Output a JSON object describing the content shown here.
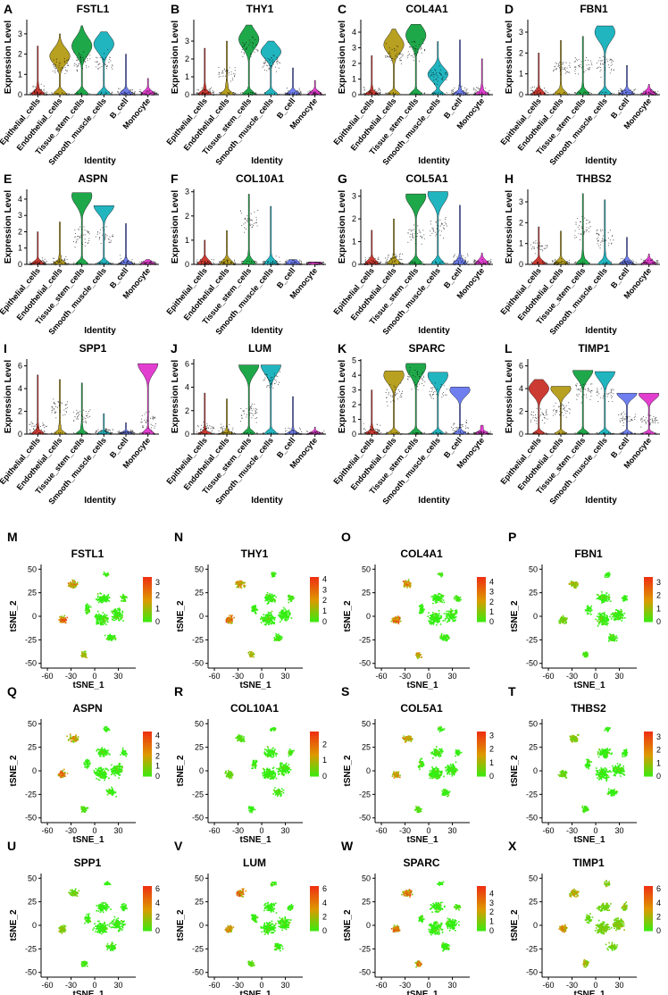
{
  "violin_common": {
    "ylabel": "Expression Level",
    "xlabel": "Identity",
    "categories": [
      "Epithelial_cells",
      "Endothelial_cells",
      "Tissue_stem_cells",
      "Smooth_muscle_cells",
      "B_cell",
      "Monocyte"
    ],
    "category_colors": [
      "#cc3b32",
      "#b8a020",
      "#1fa84a",
      "#21b5c0",
      "#6f7ff0",
      "#e23fd0"
    ]
  },
  "tsne_common": {
    "xlabel": "tSNE_1",
    "ylabel": "tSNE_2",
    "xticks": [
      -60,
      -30,
      0,
      30
    ],
    "yticks": [
      50,
      25,
      0,
      -25,
      -50
    ],
    "xlim": [
      -68,
      52
    ],
    "ylim": [
      -55,
      55
    ],
    "color_low": "#33ee11",
    "color_mid": "#dd9900",
    "color_high": "#ee3311"
  },
  "chart_data": [
    {
      "type": "violin",
      "panel": "A",
      "gene": "FSTL1",
      "yticks": [
        0,
        1,
        2,
        3
      ],
      "ylim": [
        0,
        3.7
      ],
      "peak": [
        0.2,
        1.9,
        2.4,
        2.5,
        0.1,
        0.1
      ],
      "typical": [
        0.1,
        1.4,
        1.7,
        1.6,
        0.1,
        0.1
      ],
      "max": [
        2.4,
        3.0,
        3.4,
        3.1,
        2.0,
        0.8
      ]
    },
    {
      "type": "violin",
      "panel": "B",
      "gene": "THY1",
      "yticks": [
        0,
        1,
        2,
        3
      ],
      "ylim": [
        0,
        4.2
      ],
      "peak": [
        0.2,
        0.3,
        3.1,
        2.4,
        0.1,
        0.1
      ],
      "typical": [
        0.1,
        1.2,
        2.8,
        1.8,
        0.1,
        0.1
      ],
      "max": [
        2.6,
        3.0,
        3.9,
        3.0,
        1.5,
        0.8
      ]
    },
    {
      "type": "violin",
      "panel": "C",
      "gene": "COL4A1",
      "yticks": [
        0,
        1,
        2,
        3,
        4
      ],
      "ylim": [
        0,
        4.8
      ],
      "peak": [
        0.2,
        3.2,
        3.8,
        1.3,
        0.1,
        0.3
      ],
      "typical": [
        0.2,
        2.6,
        3.0,
        1.2,
        0.1,
        0.2
      ],
      "max": [
        2.5,
        4.2,
        4.5,
        3.4,
        3.5,
        2.3
      ]
    },
    {
      "type": "violin",
      "panel": "D",
      "gene": "FBN1",
      "yticks": [
        0,
        1,
        2,
        3
      ],
      "ylim": [
        0,
        3.6
      ],
      "peak": [
        0.1,
        0.1,
        0.1,
        3.0,
        0.1,
        0.1
      ],
      "typical": [
        0.1,
        1.3,
        1.4,
        1.5,
        0.1,
        0.1
      ],
      "max": [
        2.0,
        2.6,
        2.8,
        3.3,
        1.4,
        0.5
      ]
    },
    {
      "type": "violin",
      "panel": "E",
      "gene": "ASPN",
      "yticks": [
        0,
        1,
        2,
        3,
        4
      ],
      "ylim": [
        0,
        4.6
      ],
      "peak": [
        0.1,
        0.2,
        4.2,
        3.6,
        0.1,
        0.1
      ],
      "typical": [
        0.1,
        0.2,
        1.8,
        1.7,
        0.1,
        0.1
      ],
      "max": [
        2.0,
        2.6,
        4.4,
        3.6,
        2.5,
        0.3
      ]
    },
    {
      "type": "violin",
      "panel": "F",
      "gene": "COL10A1",
      "yticks": [
        0,
        1,
        2,
        3
      ],
      "ylim": [
        0,
        3.1
      ],
      "peak": [
        0.05,
        0.05,
        0.05,
        0.05,
        0.05,
        0.05
      ],
      "typical": [
        0.05,
        0.05,
        1.8,
        0.05,
        0.05,
        0.05
      ],
      "max": [
        1.0,
        1.4,
        2.9,
        2.4,
        0.2,
        0.1
      ]
    },
    {
      "type": "violin",
      "panel": "G",
      "gene": "COL5A1",
      "yticks": [
        0,
        1,
        2,
        3
      ],
      "ylim": [
        0,
        3.3
      ],
      "peak": [
        0.1,
        0.1,
        3.0,
        3.1,
        0.1,
        0.1
      ],
      "typical": [
        0.1,
        0.3,
        1.3,
        1.7,
        0.1,
        0.1
      ],
      "max": [
        1.5,
        2.0,
        3.1,
        3.2,
        2.6,
        0.5
      ]
    },
    {
      "type": "violin",
      "panel": "H",
      "gene": "THBS2",
      "yticks": [
        0,
        1,
        2,
        3
      ],
      "ylim": [
        0,
        3.6
      ],
      "peak": [
        0.1,
        0.1,
        0.1,
        0.1,
        0.1,
        0.1
      ],
      "typical": [
        0.9,
        0.1,
        1.8,
        1.3,
        0.1,
        0.1
      ],
      "max": [
        1.8,
        1.6,
        3.4,
        3.1,
        1.3,
        0.5
      ]
    },
    {
      "type": "violin",
      "panel": "I",
      "gene": "SPP1",
      "yticks": [
        0,
        2,
        4,
        6
      ],
      "ylim": [
        0,
        6.6
      ],
      "peak": [
        0.1,
        0.2,
        0.2,
        0.1,
        0.1,
        6.2
      ],
      "typical": [
        0.5,
        2.4,
        1.6,
        0.3,
        0.2,
        1.2
      ],
      "max": [
        5.2,
        4.8,
        4.5,
        1.8,
        1.0,
        6.2
      ]
    },
    {
      "type": "violin",
      "panel": "J",
      "gene": "LUM",
      "yticks": [
        0,
        2,
        4,
        6
      ],
      "ylim": [
        0,
        6.4
      ],
      "peak": [
        0.1,
        0.1,
        5.9,
        5.9,
        0.1,
        0.1
      ],
      "typical": [
        0.5,
        0.3,
        2.0,
        4.6,
        0.1,
        0.1
      ],
      "max": [
        3.5,
        3.0,
        5.9,
        5.9,
        3.2,
        0.6
      ]
    },
    {
      "type": "violin",
      "panel": "K",
      "gene": "SPARC",
      "yticks": [
        0,
        1,
        2,
        3,
        4,
        5
      ],
      "ylim": [
        0,
        5.1
      ],
      "peak": [
        0.2,
        4.0,
        4.6,
        4.0,
        3.0,
        0.4
      ],
      "typical": [
        0.3,
        2.8,
        3.8,
        2.9,
        0.5,
        0.1
      ],
      "max": [
        3.0,
        4.3,
        4.8,
        4.2,
        3.2,
        0.6
      ]
    },
    {
      "type": "violin",
      "panel": "L",
      "gene": "TIMP1",
      "yticks": [
        0,
        2,
        4,
        6
      ],
      "ylim": [
        0,
        6.6
      ],
      "peak": [
        4.0,
        4.0,
        5.6,
        5.5,
        3.6,
        3.5
      ],
      "typical": [
        1.6,
        2.2,
        3.8,
        3.6,
        1.5,
        1.2
      ],
      "max": [
        4.8,
        4.2,
        5.6,
        5.5,
        3.6,
        3.6
      ]
    },
    {
      "type": "scatter",
      "panel": "M",
      "gene": "FSTL1",
      "legend_ticks": [
        0,
        1,
        2,
        3
      ],
      "legend_max": 3.4,
      "cluster_expr": [
        0.55,
        0.8,
        0.0,
        0.3,
        0.0,
        0.0,
        0.0,
        0.0,
        0.0,
        0.05
      ]
    },
    {
      "type": "scatter",
      "panel": "N",
      "gene": "THY1",
      "legend_ticks": [
        0,
        1,
        2,
        3,
        4
      ],
      "legend_max": 4.2,
      "cluster_expr": [
        0.55,
        0.85,
        0.0,
        0.35,
        0.0,
        0.0,
        0.0,
        0.0,
        0.0,
        0.05
      ]
    },
    {
      "type": "scatter",
      "panel": "O",
      "gene": "COL4A1",
      "legend_ticks": [
        0,
        1,
        2,
        3,
        4
      ],
      "legend_max": 4.5,
      "cluster_expr": [
        0.6,
        0.75,
        0.0,
        0.5,
        0.0,
        0.0,
        0.0,
        0.0,
        0.0,
        0.05
      ]
    },
    {
      "type": "scatter",
      "panel": "P",
      "gene": "FBN1",
      "legend_ticks": [
        0,
        1,
        2,
        3
      ],
      "legend_max": 3.4,
      "cluster_expr": [
        0.35,
        0.2,
        0.0,
        0.05,
        0.0,
        0.0,
        0.0,
        0.0,
        0.0,
        0.0
      ]
    },
    {
      "type": "scatter",
      "panel": "Q",
      "gene": "ASPN",
      "legend_ticks": [
        0,
        1,
        2,
        3,
        4
      ],
      "legend_max": 4.4,
      "cluster_expr": [
        0.5,
        0.7,
        0.0,
        0.1,
        0.0,
        0.0,
        0.0,
        0.0,
        0.0,
        0.0
      ]
    },
    {
      "type": "scatter",
      "panel": "R",
      "gene": "COL10A1",
      "legend_ticks": [
        0,
        1,
        2
      ],
      "legend_max": 2.8,
      "cluster_expr": [
        0.1,
        0.15,
        0.0,
        0.0,
        0.0,
        0.0,
        0.0,
        0.0,
        0.0,
        0.0
      ]
    },
    {
      "type": "scatter",
      "panel": "S",
      "gene": "COL5A1",
      "legend_ticks": [
        0,
        1,
        2,
        3
      ],
      "legend_max": 3.3,
      "cluster_expr": [
        0.5,
        0.55,
        0.0,
        0.1,
        0.0,
        0.0,
        0.0,
        0.0,
        0.0,
        0.0
      ]
    },
    {
      "type": "scatter",
      "panel": "T",
      "gene": "THBS2",
      "legend_ticks": [
        0,
        1,
        2,
        3
      ],
      "legend_max": 3.4,
      "cluster_expr": [
        0.25,
        0.15,
        0.0,
        0.05,
        0.0,
        0.0,
        0.0,
        0.0,
        0.0,
        0.0
      ]
    },
    {
      "type": "scatter",
      "panel": "U",
      "gene": "SPP1",
      "legend_ticks": [
        0,
        2,
        4,
        6
      ],
      "legend_max": 6.4,
      "cluster_expr": [
        0.2,
        0.25,
        0.0,
        0.05,
        0.0,
        0.0,
        0.0,
        0.0,
        0.0,
        0.0
      ]
    },
    {
      "type": "scatter",
      "panel": "V",
      "gene": "LUM",
      "legend_ticks": [
        0,
        2,
        4,
        6
      ],
      "legend_max": 6.4,
      "cluster_expr": [
        0.7,
        0.55,
        0.0,
        0.15,
        0.0,
        0.0,
        0.0,
        0.0,
        0.0,
        0.0
      ]
    },
    {
      "type": "scatter",
      "panel": "W",
      "gene": "SPARC",
      "legend_ticks": [
        0,
        1,
        2,
        3,
        4
      ],
      "legend_max": 4.8,
      "cluster_expr": [
        0.7,
        0.85,
        0.0,
        0.6,
        0.0,
        0.0,
        0.0,
        0.0,
        0.0,
        0.1
      ]
    },
    {
      "type": "scatter",
      "panel": "X",
      "gene": "TIMP1",
      "legend_ticks": [
        0,
        2,
        4,
        6
      ],
      "legend_max": 6.4,
      "cluster_expr": [
        0.45,
        0.55,
        0.25,
        0.4,
        0.2,
        0.2,
        0.25,
        0.2,
        0.15,
        0.3
      ]
    }
  ]
}
